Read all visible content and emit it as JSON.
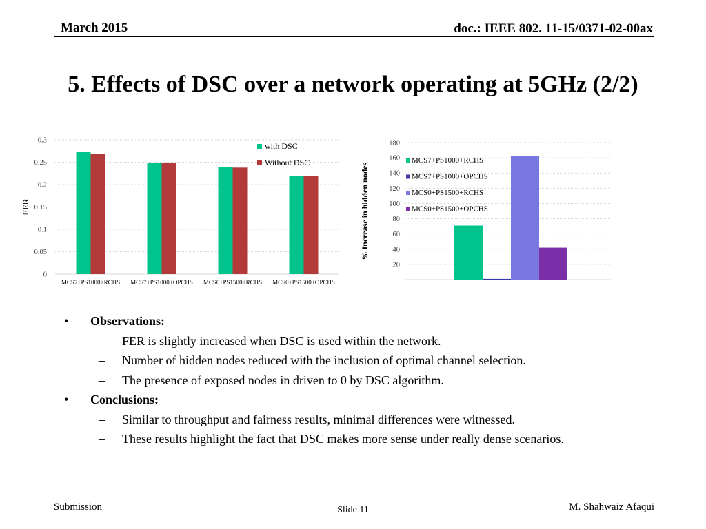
{
  "header": {
    "date": "March 2015",
    "doc": "doc.: IEEE 802. 11-15/0371-02-00ax"
  },
  "title": "5. Effects of DSC over a network operating at 5GHz (2/2)",
  "chart_data": [
    {
      "type": "bar",
      "ylabel": "FER",
      "xlabel": "",
      "ylim": [
        0,
        0.3
      ],
      "yticks": [
        "0",
        "0.05",
        "0.1",
        "0.15",
        "0.2",
        "0.25",
        "0.3"
      ],
      "grid": true,
      "legend_position": "top-right",
      "categories": [
        "MCS7+PS1000+RCHS",
        "MCS7+PS1000+OPCHS",
        "MCS0+PS1500+RCHS",
        "MCS0+PS1500+OPCHS"
      ],
      "series": [
        {
          "name": "with DSC",
          "color": "#00c48c",
          "values": [
            0.273,
            0.248,
            0.239,
            0.219
          ]
        },
        {
          "name": "Without DSC",
          "color": "#b33a3a",
          "values": [
            0.269,
            0.248,
            0.238,
            0.219
          ]
        }
      ]
    },
    {
      "type": "bar",
      "ylabel": "% Increase in hidden nodes",
      "xlabel": "",
      "ylim": [
        0,
        180
      ],
      "yticks": [
        "20",
        "40",
        "60",
        "80",
        "100",
        "120",
        "140",
        "160",
        "180"
      ],
      "grid": true,
      "legend_position": "top-left",
      "series": [
        {
          "name": "MCS7+PS1000+RCHS",
          "color": "#00c48c",
          "value": 71
        },
        {
          "name": "MCS7+PS1000+OPCHS",
          "color": "#3a3aa8",
          "value": 1
        },
        {
          "name": "MCS0+PS1500+RCHS",
          "color": "#7878e0",
          "value": 162
        },
        {
          "name": "MCS0+PS1500+OPCHS",
          "color": "#7a2ea8",
          "value": 42
        }
      ]
    }
  ],
  "body": {
    "observations_heading": "Observations:",
    "observations": [
      "FER is slightly increased when DSC is used within the network.",
      "Number of hidden nodes reduced with the inclusion of optimal channel selection.",
      "The presence of exposed nodes in driven to 0 by DSC algorithm."
    ],
    "conclusions_heading": "Conclusions:",
    "conclusions": [
      "Similar to throughput and fairness results, minimal differences were witnessed.",
      "These results highlight the fact that DSC makes more sense under really dense scenarios."
    ],
    "bullet": "•",
    "dash": "–"
  },
  "footer": {
    "left": "Submission",
    "center": "Slide 11",
    "right": "M. Shahwaiz Afaqui"
  }
}
